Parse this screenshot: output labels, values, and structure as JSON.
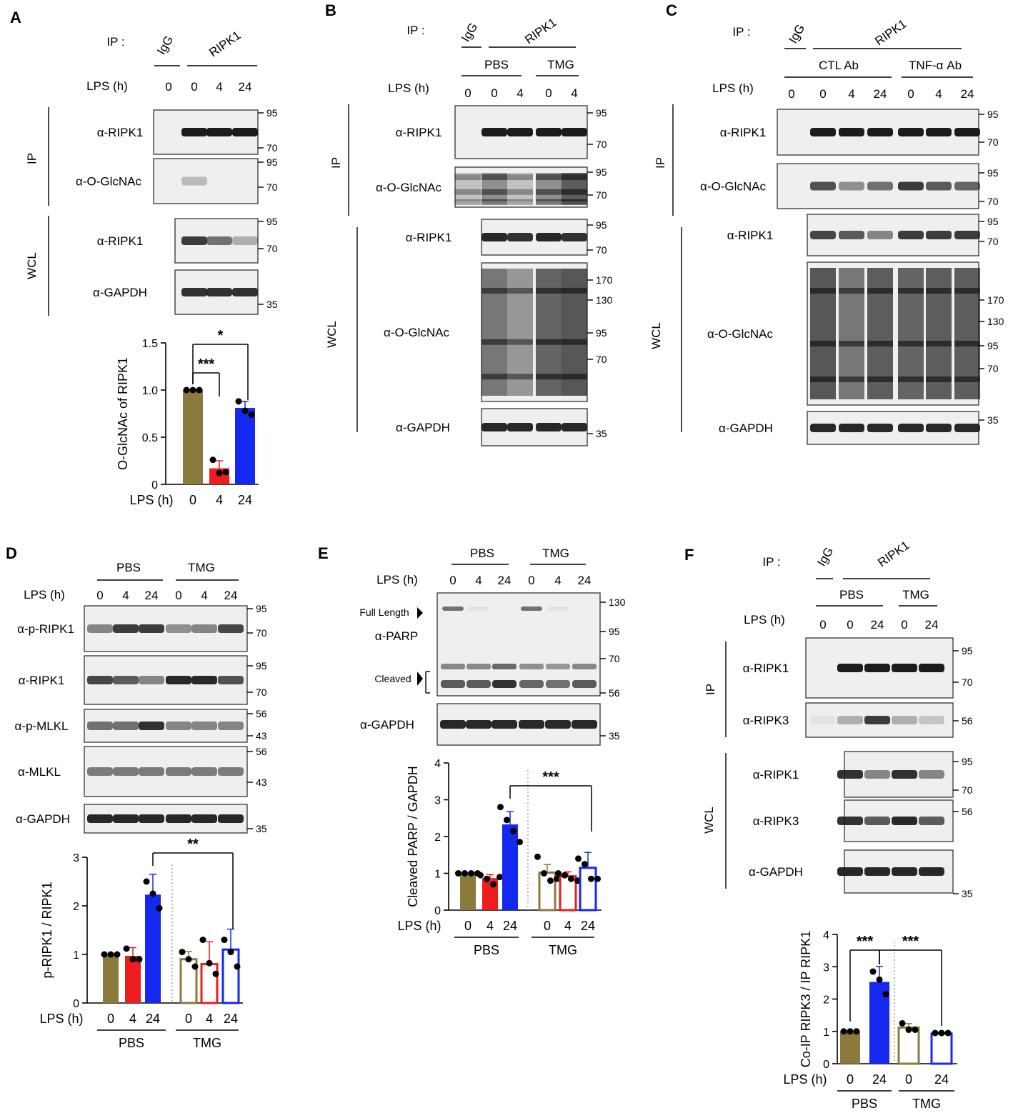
{
  "colors": {
    "olive": "#8a7a3c",
    "red": "#ee1c1c",
    "blue": "#1428f0",
    "errbar": "#777777",
    "blot_bg": "#efefef",
    "band": "#1c1c1c"
  },
  "panels": [
    {
      "id": "A",
      "label": "A",
      "ip_label": "IP :",
      "ip_groups": [
        "IgG",
        "RIPK1"
      ],
      "lps_label": "LPS (h)",
      "lanes": [
        "0",
        "0",
        "4",
        "24"
      ],
      "ip_side": "IP",
      "wcl_side": "WCL",
      "blots": [
        {
          "label": "α-RIPK1",
          "mw": [
            "95",
            "70"
          ],
          "bands": [
            0,
            1,
            1,
            1
          ]
        },
        {
          "label": "α-O-GlcNAc",
          "mw": [
            "95",
            "70"
          ],
          "bands": [
            0,
            0.25,
            0,
            0
          ]
        },
        {
          "label": "α-RIPK1",
          "mw": [
            "95",
            "70"
          ],
          "bands": [
            0.85,
            0.6,
            0.3
          ]
        },
        {
          "label": "α-GAPDH",
          "mw": [
            "35"
          ],
          "bands": [
            0.9,
            0.9,
            0.9
          ]
        }
      ]
    },
    {
      "id": "B",
      "label": "B",
      "ip_label": "IP :",
      "ip_groups": [
        "IgG",
        "RIPK1"
      ],
      "sub_groups": [
        "PBS",
        "TMG"
      ],
      "lps_label": "LPS (h)",
      "lanes": [
        "0",
        "0",
        "4",
        "0",
        "4"
      ],
      "ip_side": "IP",
      "wcl_side": "WCL",
      "blots": [
        {
          "label": "α-RIPK1",
          "mw": [
            "95",
            "70"
          ],
          "bands": [
            0,
            1,
            1,
            1,
            1
          ]
        },
        {
          "label": "α-O-GlcNAc",
          "mw": [
            "95",
            "70"
          ],
          "bands": [
            0.1,
            0.5,
            0.1,
            0.5,
            0.9
          ]
        },
        {
          "label": "α-RIPK1",
          "mw": [
            "95",
            "70"
          ],
          "bands": [
            0.95,
            0.9,
            0.95,
            0.9
          ]
        },
        {
          "label": "α-O-GlcNAc",
          "mw": [
            "170",
            "130",
            "95",
            "70"
          ],
          "bands": [
            0.7,
            0.45,
            0.85,
            0.95
          ]
        },
        {
          "label": "α-GAPDH",
          "mw": [
            "35"
          ],
          "bands": [
            0.95,
            0.95,
            0.95,
            0.95
          ]
        }
      ]
    },
    {
      "id": "C",
      "label": "C",
      "ip_label": "IP :",
      "ip_groups": [
        "IgG",
        "RIPK1"
      ],
      "sub_groups": [
        "CTL Ab",
        "TNF-α Ab"
      ],
      "lps_label": "LPS (h)",
      "lanes": [
        "0",
        "0",
        "4",
        "24",
        "0",
        "4",
        "24"
      ],
      "ip_side": "IP",
      "wcl_side": "WCL",
      "blots": [
        {
          "label": "α-RIPK1",
          "mw": [
            "95",
            "70"
          ],
          "bands": [
            0,
            1,
            1,
            1,
            1,
            1,
            1
          ]
        },
        {
          "label": "α-O-GlcNAc",
          "mw": [
            "95",
            "70"
          ],
          "bands": [
            0,
            0.75,
            0.45,
            0.6,
            0.85,
            0.7,
            0.65
          ]
        },
        {
          "label": "α-RIPK1",
          "mw": [
            "95",
            "70"
          ],
          "bands": [
            0.8,
            0.7,
            0.5,
            0.85,
            0.85,
            0.85
          ]
        },
        {
          "label": "α-O-GlcNAc",
          "mw": [
            "170",
            "130",
            "95",
            "70"
          ],
          "bands": [
            0.95,
            0.7,
            0.9,
            0.85,
            0.9,
            0.9
          ]
        },
        {
          "label": "α-GAPDH",
          "mw": [
            "35"
          ],
          "bands": [
            0.95,
            0.95,
            0.95,
            0.95,
            0.95,
            0.95
          ]
        }
      ]
    },
    {
      "id": "D",
      "label": "D",
      "sub_groups": [
        "PBS",
        "TMG"
      ],
      "lps_label": "LPS (h)",
      "lanes": [
        "0",
        "4",
        "24",
        "0",
        "4",
        "24"
      ],
      "blots": [
        {
          "label": "α-p-RIPK1",
          "mw": [
            "95",
            "70"
          ],
          "bands": [
            0.5,
            0.85,
            0.85,
            0.45,
            0.5,
            0.8
          ]
        },
        {
          "label": "α-RIPK1",
          "mw": [
            "95",
            "70"
          ],
          "bands": [
            0.8,
            0.7,
            0.5,
            0.95,
            0.95,
            0.75
          ]
        },
        {
          "label": "α-p-MLKL",
          "mw": [
            "56",
            "43"
          ],
          "bands": [
            0.6,
            0.6,
            0.9,
            0.5,
            0.5,
            0.5
          ]
        },
        {
          "label": "α-MLKL",
          "mw": [
            "56",
            "43"
          ],
          "bands": [
            0.55,
            0.55,
            0.55,
            0.55,
            0.55,
            0.55
          ]
        },
        {
          "label": "α-GAPDH",
          "mw": [
            "35"
          ],
          "bands": [
            0.95,
            0.95,
            0.95,
            0.95,
            0.95,
            0.95
          ]
        }
      ]
    },
    {
      "id": "E",
      "label": "E",
      "sub_groups": [
        "PBS",
        "TMG"
      ],
      "lps_label": "LPS (h)",
      "lanes": [
        "0",
        "4",
        "24",
        "0",
        "4",
        "24"
      ],
      "markers": [
        "Full Length",
        "Cleaved"
      ],
      "blots": [
        {
          "label": "α-PARP",
          "mw": [
            "130",
            "95",
            "70",
            "56"
          ],
          "bands": [
            0.7,
            0.7,
            0.9,
            0.65,
            0.6,
            0.7
          ]
        },
        {
          "label": "α-GAPDH",
          "mw": [
            "35"
          ],
          "bands": [
            0.95,
            0.95,
            0.95,
            0.95,
            0.95,
            0.95
          ]
        }
      ]
    },
    {
      "id": "F",
      "label": "F",
      "ip_label": "IP :",
      "ip_groups": [
        "IgG",
        "RIPK1"
      ],
      "sub_groups": [
        "PBS",
        "TMG"
      ],
      "lps_label": "LPS (h)",
      "lanes": [
        "0",
        "0",
        "24",
        "0",
        "24"
      ],
      "ip_side": "IP",
      "wcl_side": "WCL",
      "blots": [
        {
          "label": "α-RIPK1",
          "mw": [
            "95",
            "70"
          ],
          "bands": [
            0,
            1,
            1,
            1,
            1
          ]
        },
        {
          "label": "α-RIPK3",
          "mw": [
            "56"
          ],
          "bands": [
            0.05,
            0.3,
            0.85,
            0.3,
            0.2
          ]
        },
        {
          "label": "α-RIPK1",
          "mw": [
            "95",
            "70"
          ],
          "bands": [
            0.9,
            0.5,
            0.9,
            0.5
          ]
        },
        {
          "label": "α-RIPK3",
          "mw": [
            "56"
          ],
          "bands": [
            0.9,
            0.7,
            0.95,
            0.7
          ]
        },
        {
          "label": "α-GAPDH",
          "mw": [
            "35"
          ],
          "bands": [
            0.95,
            0.95,
            0.95,
            0.95
          ]
        }
      ]
    }
  ],
  "chart_data": [
    {
      "panel": "A",
      "type": "bar",
      "ylabel": "O-GlcNAc of RIPK1",
      "xlabel": "LPS (h)",
      "categories": [
        "0",
        "4",
        "24"
      ],
      "values": [
        1.0,
        0.17,
        0.81
      ],
      "errors": [
        0,
        0.08,
        0.07
      ],
      "points": [
        [
          1.0,
          1.0,
          1.0
        ],
        [
          0.26,
          0.12,
          0.13
        ],
        [
          0.88,
          0.78,
          0.74
        ]
      ],
      "ylim": [
        0,
        1.5
      ],
      "yticks": [
        "0",
        "0.5",
        "1.0",
        "1.5"
      ],
      "significance": [
        {
          "from": "0",
          "to": "4",
          "label": "***"
        },
        {
          "from": "0",
          "to": "24",
          "label": "*"
        }
      ]
    },
    {
      "panel": "D",
      "type": "bar",
      "ylabel": "p-RIPK1 / RIPK1",
      "xlabel": "LPS (h)",
      "groups": [
        "PBS",
        "TMG"
      ],
      "categories": [
        "0",
        "4",
        "24",
        "0",
        "4",
        "24"
      ],
      "values": [
        1.0,
        0.97,
        2.23,
        0.9,
        0.8,
        1.1
      ],
      "errors": [
        0,
        0.17,
        0.42,
        0.16,
        0.46,
        0.42
      ],
      "points": [
        [
          1.0,
          1.0,
          1.0
        ],
        [
          1.12,
          0.9,
          0.9
        ],
        [
          2.5,
          2.25,
          1.95
        ],
        [
          1.05,
          0.9,
          0.75
        ],
        [
          1.3,
          0.82,
          0.6
        ],
        [
          1.3,
          1.05,
          0.75
        ]
      ],
      "ylim": [
        0,
        3
      ],
      "yticks": [
        "0",
        "1",
        "2",
        "3"
      ],
      "significance": [
        {
          "from": "24 (PBS)",
          "to": "24 (TMG)",
          "label": "**"
        }
      ]
    },
    {
      "panel": "E",
      "type": "bar",
      "ylabel": "Cleaved PARP / GAPDH",
      "xlabel": "LPS (h)",
      "groups": [
        "PBS",
        "TMG"
      ],
      "categories": [
        "0",
        "4",
        "24",
        "0",
        "4",
        "24"
      ],
      "values": [
        1.0,
        0.87,
        2.33,
        1.02,
        0.92,
        1.15
      ],
      "errors": [
        0,
        0.1,
        0.35,
        0.22,
        0.12,
        0.42
      ],
      "points": [
        [
          1.0,
          1.0,
          1.0,
          1.0
        ],
        [
          0.95,
          0.85,
          0.7,
          0.9
        ],
        [
          2.8,
          2.45,
          2.15,
          1.85
        ],
        [
          1.45,
          1.0,
          0.8,
          0.85
        ],
        [
          1.0,
          0.95,
          0.85,
          0.8
        ],
        [
          1.4,
          1.25,
          0.85,
          0.85
        ]
      ],
      "ylim": [
        0,
        4
      ],
      "yticks": [
        "0",
        "1",
        "2",
        "3",
        "4"
      ],
      "significance": [
        {
          "from": "24 (PBS)",
          "to": "24 (TMG)",
          "label": "***"
        }
      ]
    },
    {
      "panel": "F",
      "type": "bar",
      "ylabel": "Co-IP RIPK3 / IP RIPK1",
      "xlabel": "LPS (h)",
      "groups": [
        "PBS",
        "TMG"
      ],
      "categories": [
        "0",
        "24",
        "0",
        "24"
      ],
      "values": [
        1.0,
        2.53,
        1.12,
        0.93
      ],
      "errors": [
        0,
        0.48,
        0.12,
        0.03
      ],
      "points": [
        [
          1.0,
          1.0,
          1.0
        ],
        [
          2.85,
          2.6,
          2.15
        ],
        [
          1.25,
          1.05,
          1.05
        ],
        [
          0.95,
          0.95,
          0.95
        ]
      ],
      "ylim": [
        0,
        4
      ],
      "yticks": [
        "0",
        "1",
        "2",
        "3",
        "4"
      ],
      "significance": [
        {
          "from": "0 (PBS)",
          "to": "24 (PBS)",
          "label": "***"
        },
        {
          "from": "24 (PBS)",
          "to": "24 (TMG)",
          "label": "***"
        }
      ]
    }
  ]
}
